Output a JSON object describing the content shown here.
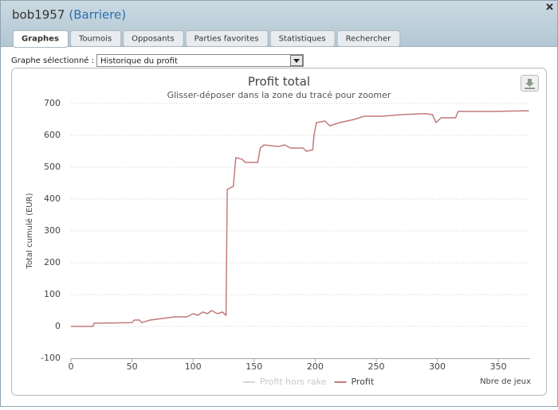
{
  "header": {
    "user": "bob1957",
    "site": "(Barriere)"
  },
  "tabs": [
    "Graphes",
    "Tournois",
    "Opposants",
    "Parties favorites",
    "Statistiques",
    "Rechercher"
  ],
  "active_tab": 0,
  "selector": {
    "label": "Graphe sélectionné :",
    "selected": "Historique du profit"
  },
  "chart_data": {
    "type": "line",
    "title": "Profit total",
    "subtitle": "Glisser-déposer dans la zone du tracé pour zoomer",
    "y_label": "Total cumulé (EUR)",
    "x_label": "Nbre de jeux",
    "x": [
      0,
      18,
      19,
      50,
      52,
      56,
      58,
      65,
      75,
      85,
      95,
      100,
      104,
      108,
      112,
      115,
      120,
      124,
      127,
      128,
      133,
      135,
      140,
      143,
      153,
      155,
      158,
      170,
      175,
      180,
      190,
      193,
      198,
      199,
      201,
      208,
      212,
      220,
      232,
      240,
      255,
      270,
      290,
      296,
      299,
      303,
      315,
      317,
      345,
      370,
      375
    ],
    "series": [
      {
        "name": "Profit",
        "color": "#c47a7a",
        "values": [
          0,
          0,
          10,
          12,
          20,
          20,
          12,
          20,
          25,
          30,
          30,
          40,
          35,
          45,
          40,
          50,
          40,
          45,
          35,
          430,
          440,
          530,
          525,
          515,
          515,
          560,
          570,
          565,
          570,
          560,
          560,
          550,
          555,
          600,
          640,
          645,
          630,
          640,
          650,
          660,
          660,
          665,
          668,
          665,
          640,
          655,
          655,
          675,
          675,
          677,
          677
        ]
      }
    ],
    "hidden_series": [
      {
        "name": "Profit hors rake",
        "color": "#d6d6d6"
      }
    ],
    "xlim": [
      0,
      376
    ],
    "xticks": [
      0,
      50,
      100,
      150,
      200,
      250,
      300,
      350
    ],
    "ylim": [
      -100,
      700
    ],
    "yticks": [
      -100,
      0,
      100,
      200,
      300,
      400,
      500,
      600,
      700
    ],
    "grid": true
  }
}
